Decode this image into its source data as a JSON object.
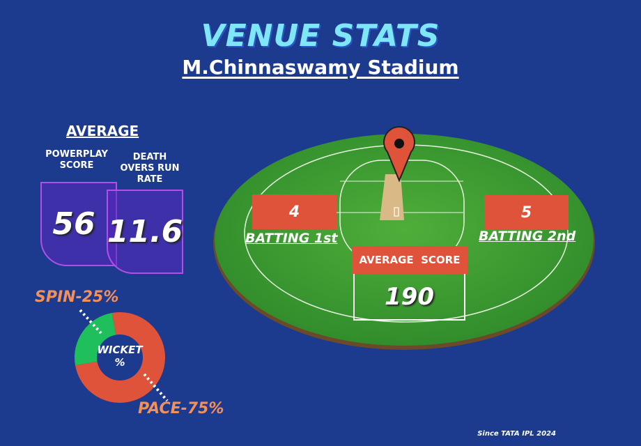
{
  "header": {
    "title": "VENUE STATS",
    "venue": "M.Chinnaswamy Stadium"
  },
  "average": {
    "heading": "AVERAGE",
    "powerplay": {
      "label": "POWERPLAY SCORE",
      "value": "56"
    },
    "death": {
      "label": "DEATH OVERS RUN RATE",
      "value": "11.6"
    }
  },
  "wickets": {
    "center_label": "WICKET %",
    "spin": {
      "label": "SPIN-25%",
      "percent": 25,
      "color": "#1fbf5c"
    },
    "pace": {
      "label": "PACE-75%",
      "percent": 75,
      "color": "#e0533b"
    }
  },
  "ground": {
    "batting_first": {
      "value": "4",
      "label": "BATTING 1st"
    },
    "batting_second": {
      "value": "5",
      "label": "BATTING 2nd"
    },
    "average_score": {
      "label": "AVERAGE  SCORE",
      "value": "190"
    }
  },
  "footer": "Since TATA IPL 2024",
  "colors": {
    "background": "#1c3a8e",
    "accent": "#e0533b",
    "title": "#7fe6f5"
  }
}
